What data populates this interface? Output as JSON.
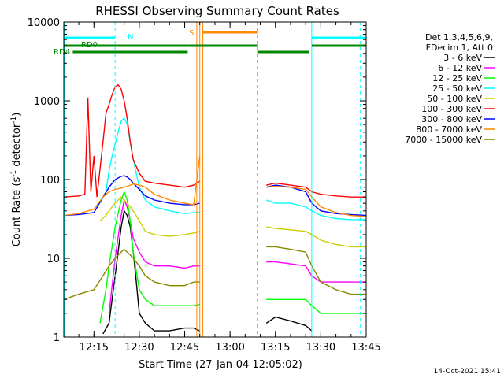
{
  "chart_data": {
    "type": "line",
    "title": "RHESSI Observing Summary Count Rates",
    "xlabel": "Start Time (27-Jan-04 12:05:02)",
    "ylabel": "Count Rate (s⁻¹ detector⁻¹)",
    "ylabel_main": "Count Rate (s",
    "ylabel_sup1": "-1",
    "ylabel_mid": " detector",
    "ylabel_sup2": "-1",
    "ylabel_end": ")",
    "yscale": "log",
    "ylim": [
      1,
      10000
    ],
    "xlim": [
      "12:05:02",
      "13:45:00"
    ],
    "x_ticks": [
      "12:15",
      "12:30",
      "12:45",
      "13:00",
      "13:15",
      "13:30",
      "13:45"
    ],
    "y_ticks": [
      "1",
      "10",
      "100",
      "1000",
      "10000"
    ],
    "legend_title": [
      "Det 1,3,4,5,6,9,",
      "FDecim 1, Att 0"
    ],
    "legend_position": "right",
    "footer": "14-Oct-2021 15:41",
    "series": [
      {
        "name": "3 - 6 keV",
        "color": "#000000",
        "x": [
          "12:05",
          "12:10",
          "12:15",
          "12:18",
          "12:20",
          "12:21",
          "12:22",
          "12:23",
          "12:24",
          "12:25",
          "12:26",
          "12:27",
          "12:28",
          "12:29",
          "12:30",
          "12:32",
          "12:35",
          "12:40",
          "12:45",
          "12:48",
          "12:50",
          "13:12",
          "13:15",
          "13:20",
          "13:25",
          "13:27",
          "13:30",
          "13:35",
          "13:40",
          "13:45"
        ],
        "y": [
          null,
          null,
          null,
          1.1,
          1.5,
          3,
          6,
          12,
          25,
          40,
          35,
          25,
          12,
          5,
          2,
          1.5,
          1.2,
          1.2,
          1.3,
          1.3,
          1.2,
          1.5,
          1.8,
          1.6,
          1.4,
          1.2,
          null,
          null,
          null,
          null
        ]
      },
      {
        "name": "6 - 12 keV",
        "color": "#ff00ff",
        "x": [
          "12:05",
          "12:10",
          "12:15",
          "12:18",
          "12:20",
          "12:22",
          "12:24",
          "12:25",
          "12:26",
          "12:27",
          "12:28",
          "12:30",
          "12:32",
          "12:35",
          "12:40",
          "12:45",
          "12:48",
          "12:50",
          "13:12",
          "13:15",
          "13:20",
          "13:25",
          "13:27",
          "13:30",
          "13:35",
          "13:40",
          "13:45"
        ],
        "y": [
          null,
          null,
          null,
          null,
          2,
          10,
          35,
          55,
          45,
          30,
          18,
          12,
          9,
          8,
          8,
          7.5,
          8,
          8,
          9,
          9,
          8.5,
          8,
          6,
          5,
          5,
          5,
          5
        ]
      },
      {
        "name": "12 - 25 keV",
        "color": "#00ff00",
        "x": [
          "12:05",
          "12:10",
          "12:15",
          "12:17",
          "12:19",
          "12:20",
          "12:22",
          "12:24",
          "12:25",
          "12:26",
          "12:27",
          "12:28",
          "12:30",
          "12:32",
          "12:35",
          "12:40",
          "12:45",
          "12:48",
          "12:50",
          "13:12",
          "13:15",
          "13:20",
          "13:25",
          "13:27",
          "13:30",
          "13:35",
          "13:40",
          "13:45"
        ],
        "y": [
          null,
          null,
          null,
          1.5,
          4,
          8,
          25,
          55,
          70,
          55,
          30,
          12,
          4,
          3,
          2.5,
          2.5,
          2.5,
          2.5,
          2.6,
          3,
          3,
          3,
          3,
          2.5,
          2,
          2,
          2,
          2
        ]
      },
      {
        "name": "25 - 50 keV",
        "color": "#00ffff",
        "x": [
          "12:05",
          "12:10",
          "12:15",
          "12:17",
          "12:19",
          "12:20",
          "12:21",
          "12:22",
          "12:23",
          "12:24",
          "12:25",
          "12:26",
          "12:27",
          "12:28",
          "12:30",
          "12:32",
          "12:35",
          "12:40",
          "12:45",
          "12:48",
          "12:50",
          "13:12",
          "13:15",
          "13:20",
          "13:25",
          "13:27",
          "13:30",
          "13:35",
          "13:40",
          "13:45"
        ],
        "y": [
          null,
          null,
          null,
          50,
          70,
          130,
          200,
          280,
          400,
          550,
          600,
          500,
          300,
          180,
          80,
          55,
          45,
          40,
          37,
          38,
          38,
          55,
          50,
          50,
          45,
          40,
          35,
          32,
          31,
          31
        ]
      },
      {
        "name": "50 - 100 keV",
        "color": "#cccc00",
        "x": [
          "12:05",
          "12:10",
          "12:15",
          "12:17",
          "12:19",
          "12:20",
          "12:21",
          "12:22",
          "12:23",
          "12:24",
          "12:25",
          "12:26",
          "12:27",
          "12:28",
          "12:30",
          "12:32",
          "12:35",
          "12:40",
          "12:45",
          "12:48",
          "12:50",
          "13:12",
          "13:15",
          "13:20",
          "13:25",
          "13:27",
          "13:30",
          "13:35",
          "13:40",
          "13:45"
        ],
        "y": [
          null,
          null,
          null,
          30,
          35,
          40,
          45,
          50,
          55,
          60,
          55,
          50,
          45,
          40,
          30,
          22,
          20,
          19,
          20,
          21,
          22,
          25,
          24,
          23,
          22,
          20,
          17,
          15,
          14,
          14
        ]
      },
      {
        "name": "100 - 300 keV",
        "color": "#ff0000",
        "x": [
          "12:05",
          "12:10",
          "12:12",
          "12:13",
          "12:14",
          "12:15",
          "12:16",
          "12:18",
          "12:19",
          "12:20",
          "12:21",
          "12:22",
          "12:23",
          "12:24",
          "12:25",
          "12:26",
          "12:27",
          "12:28",
          "12:30",
          "12:32",
          "12:35",
          "12:40",
          "12:45",
          "12:48",
          "12:50",
          "13:12",
          "13:15",
          "13:20",
          "13:25",
          "13:27",
          "13:30",
          "13:35",
          "13:40",
          "13:45"
        ],
        "y": [
          60,
          62,
          65,
          1100,
          70,
          200,
          60,
          300,
          700,
          900,
          1200,
          1500,
          1600,
          1400,
          1000,
          600,
          300,
          180,
          120,
          95,
          90,
          85,
          80,
          85,
          95,
          85,
          90,
          85,
          80,
          70,
          65,
          62,
          60,
          60
        ]
      },
      {
        "name": "300 - 800 keV",
        "color": "#0000ff",
        "x": [
          "12:05",
          "12:10",
          "12:15",
          "12:18",
          "12:20",
          "12:22",
          "12:24",
          "12:25",
          "12:26",
          "12:27",
          "12:28",
          "12:30",
          "12:32",
          "12:35",
          "12:40",
          "12:45",
          "12:48",
          "12:50",
          "13:12",
          "13:15",
          "13:20",
          "13:25",
          "13:27",
          "13:30",
          "13:35",
          "13:40",
          "13:45"
        ],
        "y": [
          35,
          36,
          38,
          60,
          80,
          100,
          110,
          112,
          108,
          100,
          90,
          75,
          62,
          55,
          50,
          48,
          48,
          50,
          80,
          85,
          80,
          70,
          50,
          40,
          37,
          36,
          35
        ]
      },
      {
        "name": "800 - 7000 keV",
        "color": "#ff8800",
        "x": [
          "12:05",
          "12:10",
          "12:15",
          "12:18",
          "12:20",
          "12:22",
          "12:24",
          "12:25",
          "12:26",
          "12:27",
          "12:28",
          "12:30",
          "12:32",
          "12:35",
          "12:40",
          "12:45",
          "12:48",
          "12:50",
          "13:12",
          "13:15",
          "13:20",
          "13:25",
          "13:27",
          "13:30",
          "13:35",
          "13:40",
          "13:45"
        ],
        "y": [
          35,
          37,
          42,
          60,
          70,
          75,
          78,
          80,
          82,
          85,
          88,
          85,
          80,
          65,
          55,
          50,
          48,
          200,
          80,
          82,
          80,
          75,
          60,
          45,
          38,
          35,
          34
        ]
      },
      {
        "name": "7000 - 15000 keV",
        "color": "#888800",
        "x": [
          "12:05",
          "12:10",
          "12:15",
          "12:18",
          "12:20",
          "12:22",
          "12:24",
          "12:25",
          "12:26",
          "12:27",
          "12:28",
          "12:30",
          "12:32",
          "12:35",
          "12:40",
          "12:45",
          "12:48",
          "12:50",
          "13:12",
          "13:15",
          "13:20",
          "13:25",
          "13:27",
          "13:30",
          "13:35",
          "13:40",
          "13:45"
        ],
        "y": [
          3,
          3.5,
          4,
          6,
          8,
          10,
          12,
          13,
          12,
          11,
          10,
          8,
          6,
          5,
          4.5,
          4.5,
          5,
          5,
          14,
          14,
          13,
          12,
          8,
          5,
          4,
          3.5,
          3.5
        ]
      }
    ],
    "gaps": [
      [
        "12:50",
        "13:12"
      ]
    ],
    "annotations": {
      "labels": [
        "N",
        "RD0",
        "RD4",
        "S"
      ],
      "colors": {
        "N": "#00ffff",
        "RD0": "#008800",
        "RD4": "#008800",
        "S": "#ff8800"
      }
    }
  }
}
